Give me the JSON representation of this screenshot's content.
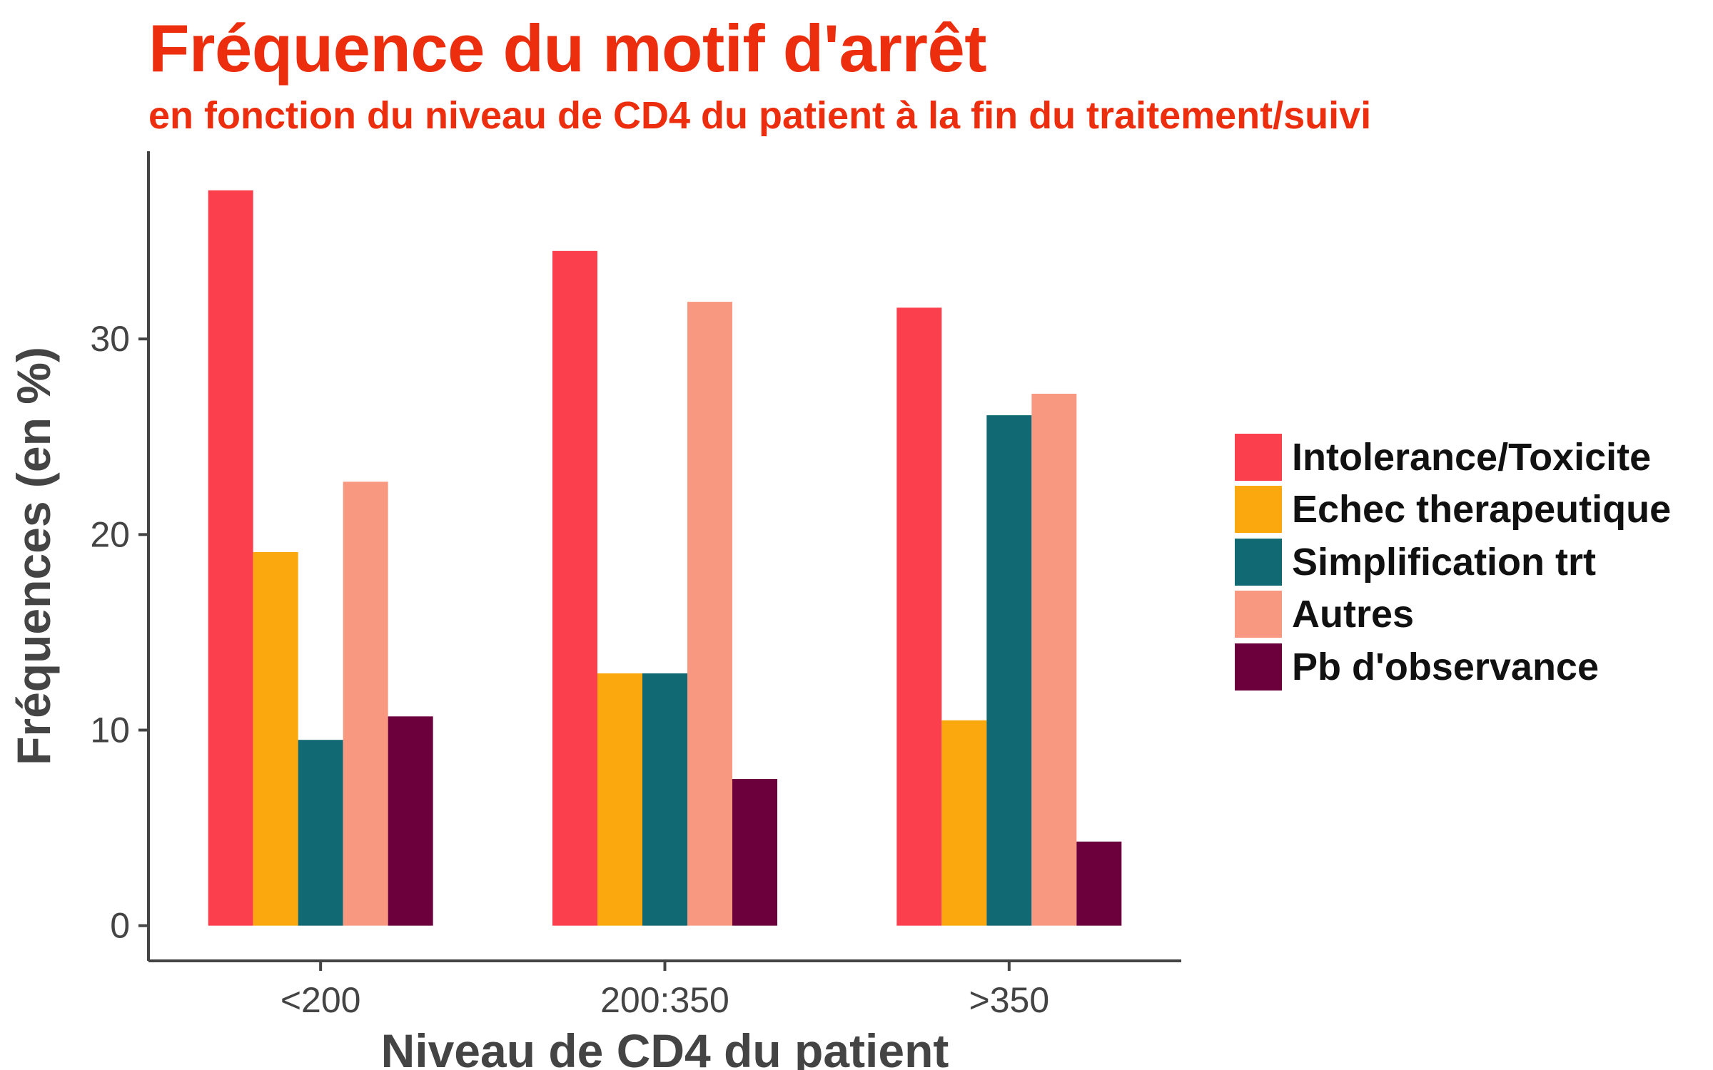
{
  "title": "Fréquence du motif d'arrêt",
  "subtitle": "en fonction du niveau de CD4 du patient à la fin du traitement/suivi",
  "colors": {
    "title": "#ec2d0e",
    "axis": "#444444",
    "series": [
      "#fb3f4d",
      "#fba80e",
      "#116974",
      "#f99881",
      "#6b003d"
    ]
  },
  "chart_data": {
    "type": "bar",
    "title": "Fréquence du motif d'arrêt",
    "subtitle": "en fonction du niveau de CD4 du patient à la fin du traitement/suivi",
    "xlabel": "Niveau de CD4 du patient",
    "ylabel": "Fréquences (en %)",
    "categories": [
      "<200",
      "200:350",
      ">350"
    ],
    "yticks": [
      0,
      10,
      20,
      30
    ],
    "ylim": [
      -1.8,
      39.6
    ],
    "grid": false,
    "legend_position": "right",
    "series": [
      {
        "name": "Intolerance/Toxicite",
        "color": "#fb3f4d",
        "values": [
          37.6,
          34.5,
          31.6
        ]
      },
      {
        "name": "Echec therapeutique",
        "color": "#fba80e",
        "values": [
          19.1,
          12.9,
          10.5
        ]
      },
      {
        "name": "Simplification trt",
        "color": "#116974",
        "values": [
          9.5,
          12.9,
          26.1
        ]
      },
      {
        "name": "Autres",
        "color": "#f99881",
        "values": [
          22.7,
          31.9,
          27.2
        ]
      },
      {
        "name": "Pb d'observance",
        "color": "#6b003d",
        "values": [
          10.7,
          7.5,
          4.3
        ]
      }
    ]
  }
}
